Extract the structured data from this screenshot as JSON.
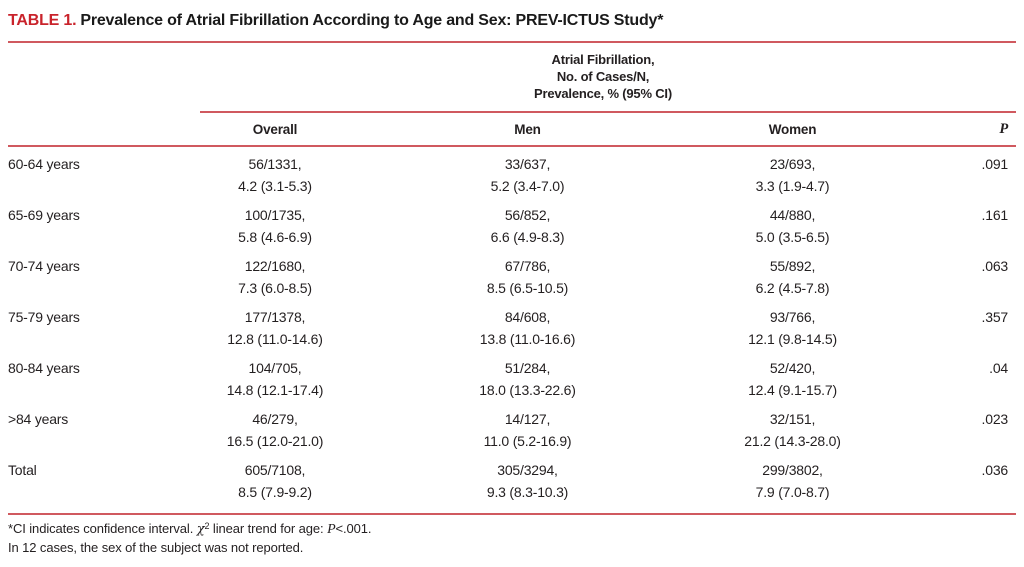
{
  "title": {
    "table_number": "TABLE 1.",
    "text": "Prevalence of Atrial Fibrillation According to Age and Sex: PREV-ICTUS Study*"
  },
  "table": {
    "span_header": {
      "line1": "Atrial Fibrillation,",
      "line2": "No. of Cases/N,",
      "line3": "Prevalence, % (95% CI)"
    },
    "columns": {
      "overall": "Overall",
      "men": "Men",
      "women": "Women",
      "p": "P"
    },
    "rows": [
      {
        "label": "60-64 years",
        "overall": [
          "56/1331,",
          "4.2 (3.1-5.3)"
        ],
        "men": [
          "33/637,",
          "5.2 (3.4-7.0)"
        ],
        "women": [
          "23/693,",
          "3.3 (1.9-4.7)"
        ],
        "p": ".091"
      },
      {
        "label": "65-69 years",
        "overall": [
          "100/1735,",
          "5.8 (4.6-6.9)"
        ],
        "men": [
          "56/852,",
          "6.6 (4.9-8.3)"
        ],
        "women": [
          "44/880,",
          "5.0 (3.5-6.5)"
        ],
        "p": ".161"
      },
      {
        "label": "70-74 years",
        "overall": [
          "122/1680,",
          "7.3 (6.0-8.5)"
        ],
        "men": [
          "67/786,",
          "8.5 (6.5-10.5)"
        ],
        "women": [
          "55/892,",
          "6.2 (4.5-7.8)"
        ],
        "p": ".063"
      },
      {
        "label": "75-79 years",
        "overall": [
          "177/1378,",
          "12.8 (11.0-14.6)"
        ],
        "men": [
          "84/608,",
          "13.8 (11.0-16.6)"
        ],
        "women": [
          "93/766,",
          "12.1 (9.8-14.5)"
        ],
        "p": ".357"
      },
      {
        "label": "80-84 years",
        "overall": [
          "104/705,",
          "14.8 (12.1-17.4)"
        ],
        "men": [
          "51/284,",
          "18.0 (13.3-22.6)"
        ],
        "women": [
          "52/420,",
          "12.4 (9.1-15.7)"
        ],
        "p": ".04"
      },
      {
        "label": ">84 years",
        "overall": [
          "46/279,",
          "16.5 (12.0-21.0)"
        ],
        "men": [
          "14/127,",
          "11.0 (5.2-16.9)"
        ],
        "women": [
          "32/151,",
          "21.2 (14.3-28.0)"
        ],
        "p": ".023"
      },
      {
        "label": "Total",
        "overall": [
          "605/7108,",
          "8.5 (7.9-9.2)"
        ],
        "men": [
          "305/3294,",
          "9.3 (8.3-10.3)"
        ],
        "women": [
          "299/3802,",
          "7.9 (7.0-8.7)"
        ],
        "p": ".036"
      }
    ]
  },
  "footnotes": {
    "line1_pre": "*CI indicates confidence interval. ",
    "line1_chi": "χ",
    "line1_sup": "2",
    "line1_mid": " linear trend for age: ",
    "line1_p": "P",
    "line1_post": "<.001.",
    "line2": "In 12 cases, the sex of the subject was not reported."
  },
  "colors": {
    "accent_red": "#c9232b",
    "rule_red": "#d0595f",
    "text": "#231f20"
  }
}
